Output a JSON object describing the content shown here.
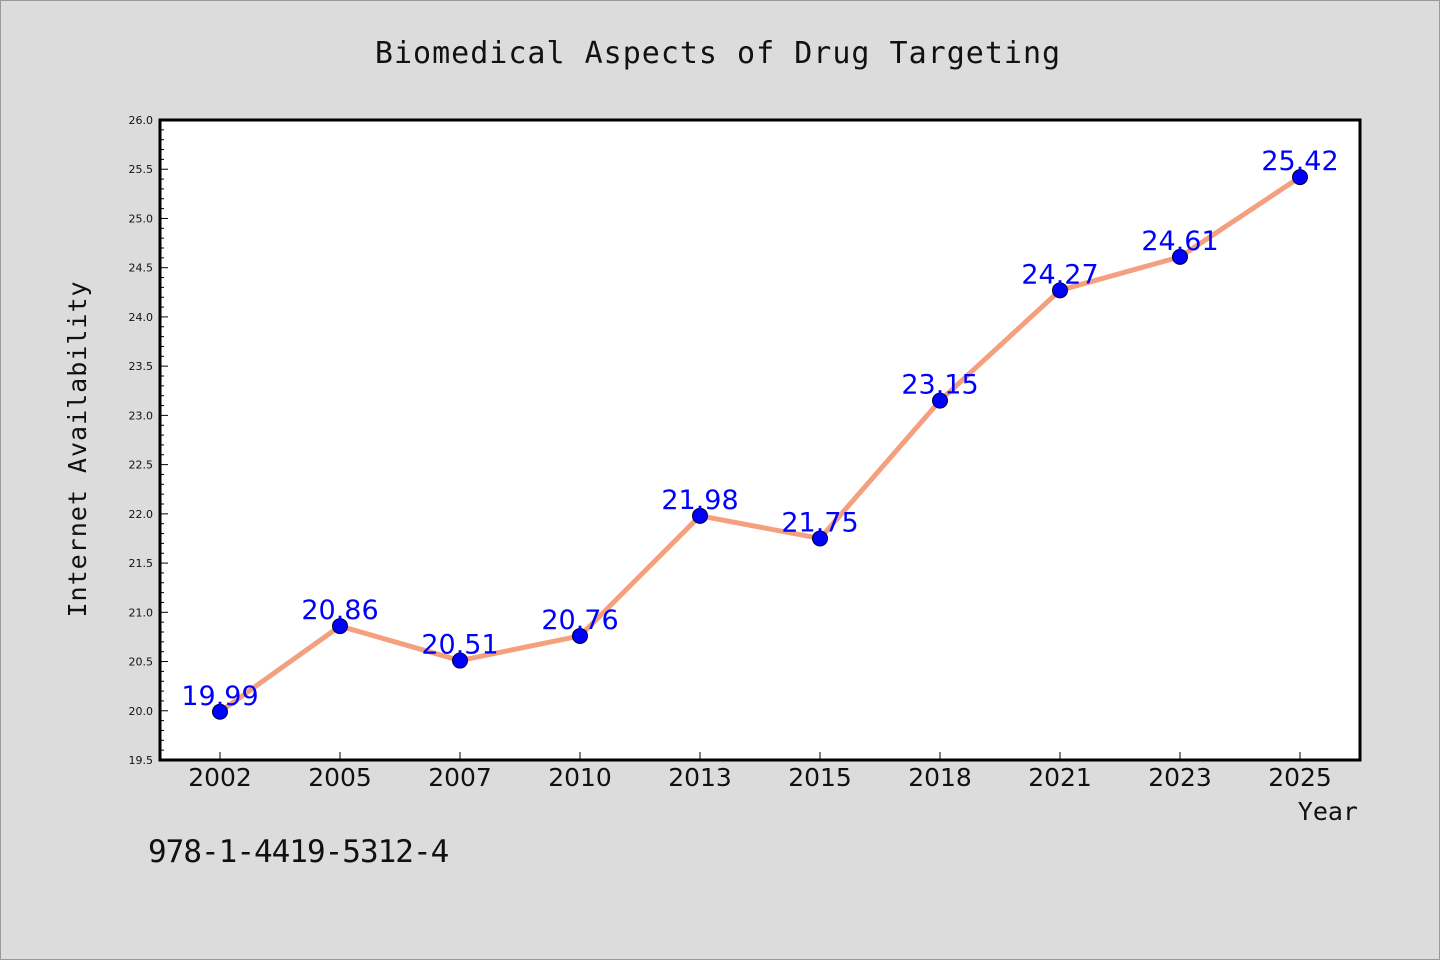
{
  "chart_data": {
    "type": "line",
    "title": "Biomedical Aspects of Drug Targeting",
    "xlabel": "Year",
    "ylabel": "Internet Availability",
    "categories": [
      "2002",
      "2005",
      "2007",
      "2010",
      "2013",
      "2015",
      "2018",
      "2021",
      "2023",
      "2025"
    ],
    "series": [
      {
        "values": [
          19.99,
          20.86,
          20.51,
          20.76,
          21.98,
          21.75,
          23.15,
          24.27,
          24.61,
          25.42
        ],
        "data_labels": [
          "19.99",
          "20.86",
          "20.51",
          "20.76",
          "21.98",
          "21.75",
          "23.15",
          "24.27",
          "24.61",
          "25.42"
        ],
        "line_color": "#f4a07e",
        "marker_color": "#0000ff"
      }
    ],
    "ylim": [
      19.5,
      26.0
    ],
    "yticks": [
      "19.5",
      "20.0",
      "20.5",
      "21.0",
      "21.5",
      "22.0",
      "22.5",
      "23.0",
      "23.5",
      "24.0",
      "24.5",
      "25.0",
      "25.5",
      "26.0"
    ],
    "grid": false,
    "legend": false
  },
  "footer": {
    "isbn": "978-1-4419-5312-4"
  },
  "colors": {
    "background": "#dcdcdc",
    "plot_background": "#ffffff",
    "data_label": "#0000ff"
  }
}
